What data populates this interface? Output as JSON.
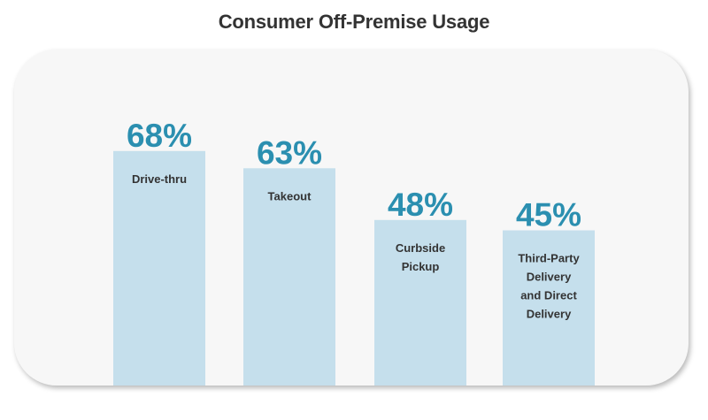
{
  "chart_data": {
    "type": "bar",
    "title": "Consumer Off-Premise Usage",
    "categories": [
      "Drive-thru",
      "Takeout",
      "Curbside Pickup",
      "Third-Party Delivery and Direct Delivery"
    ],
    "category_lines": [
      [
        "Drive-thru"
      ],
      [
        "Takeout"
      ],
      [
        "Curbside",
        "Pickup"
      ],
      [
        "Third-Party",
        "Delivery",
        "and Direct",
        "Delivery"
      ]
    ],
    "values": [
      68,
      63,
      48,
      45
    ],
    "value_labels": [
      "68%",
      "63%",
      "48%",
      "45%"
    ],
    "xlabel": "",
    "ylabel": "",
    "ylim": [
      0,
      80
    ],
    "grid": false,
    "legend": "none",
    "colors": {
      "bar": "#c5dfec",
      "value_label": "#2b8fb0",
      "category_label": "#333333"
    }
  }
}
